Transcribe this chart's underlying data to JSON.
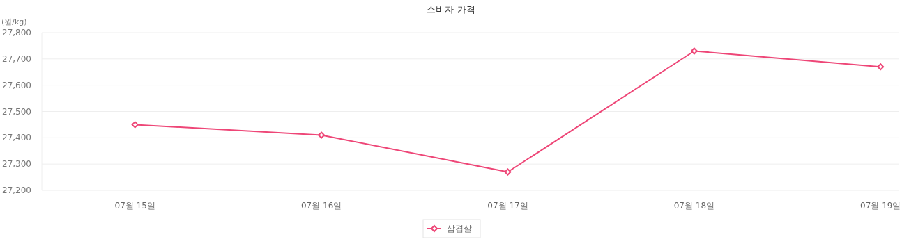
{
  "chart_data": {
    "type": "line",
    "title": "소비자 가격",
    "ylabel": "(원/kg)",
    "categories": [
      "07월 15일",
      "07월 16일",
      "07월 17일",
      "07월 18일",
      "07월 19일"
    ],
    "series": [
      {
        "name": "삼겹살",
        "color": "#ee4677",
        "values": [
          27450,
          27410,
          27270,
          27730,
          27670
        ]
      }
    ],
    "ylim": [
      27200,
      27800
    ],
    "yticks": [
      {
        "value": 27200,
        "label": "27,200"
      },
      {
        "value": 27300,
        "label": "27,300"
      },
      {
        "value": 27400,
        "label": "27,400"
      },
      {
        "value": 27500,
        "label": "27,500"
      },
      {
        "value": 27600,
        "label": "27,600"
      },
      {
        "value": 27700,
        "label": "27,700"
      },
      {
        "value": 27800,
        "label": "27,800"
      }
    ],
    "grid": "y",
    "legend": "bottom",
    "marker": "diamond",
    "line_style": "solid"
  }
}
